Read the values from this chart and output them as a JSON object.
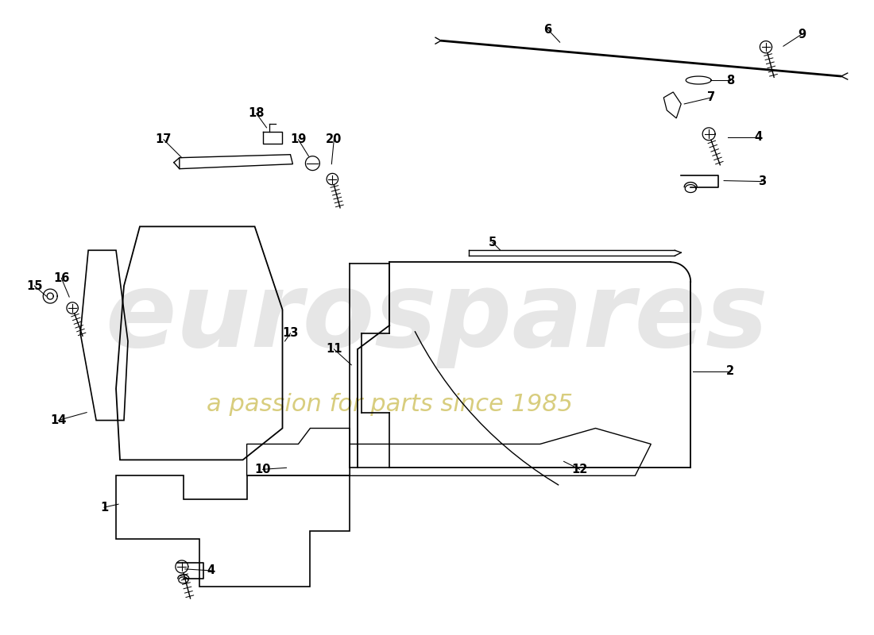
{
  "background_color": "#ffffff",
  "line_color": "#000000",
  "watermark_text1": "eurospares",
  "watermark_text2": "a passion for parts since 1985",
  "watermark_color1": "#c8c8c8",
  "watermark_color2": "#d4c870"
}
